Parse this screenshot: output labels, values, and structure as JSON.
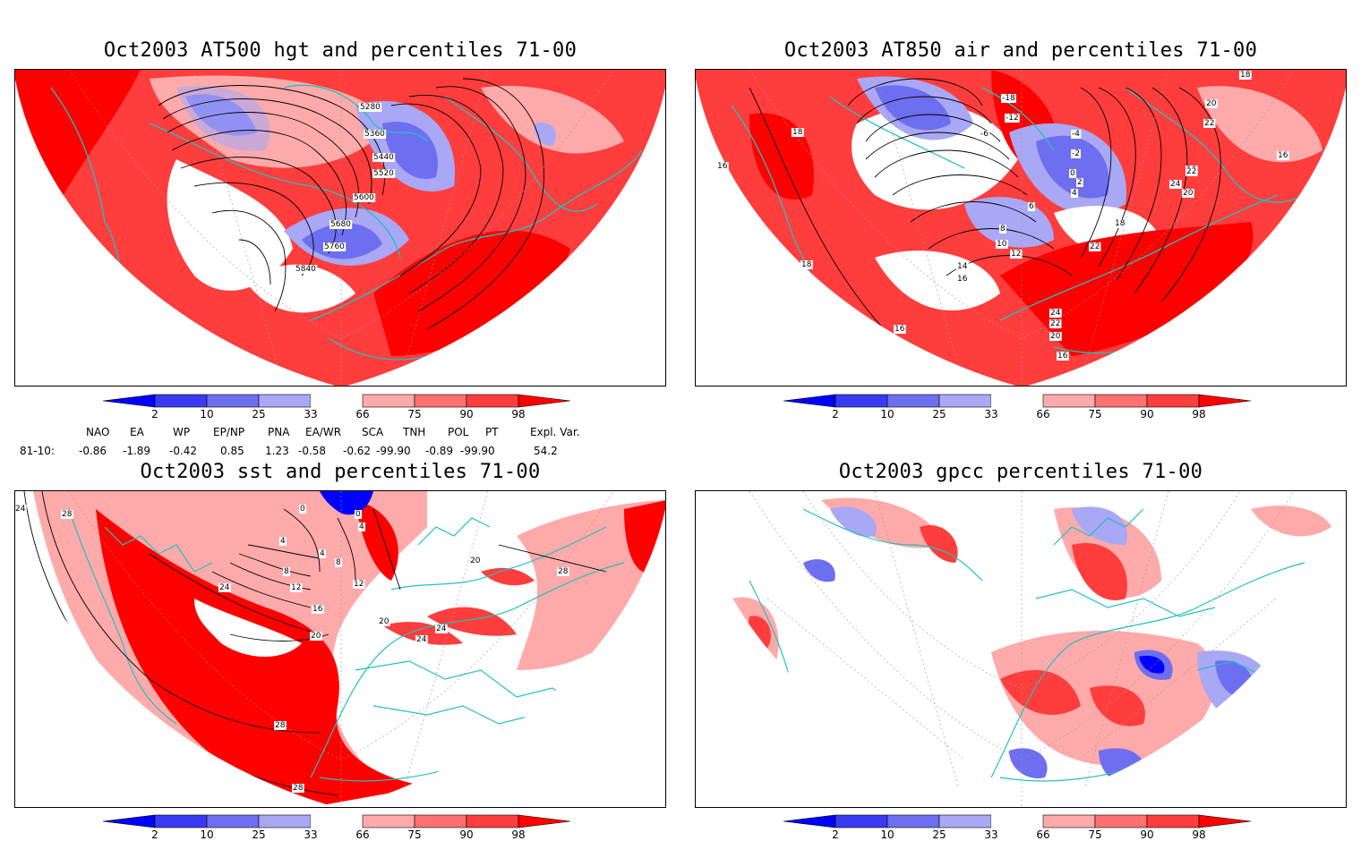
{
  "panels": [
    {
      "id": "p1",
      "title": "Oct2003 AT500 hgt and percentiles 71-00",
      "contour_labels": [
        "5280",
        "5360",
        "5440",
        "5520",
        "5600",
        "5680",
        "5760",
        "5840"
      ]
    },
    {
      "id": "p2",
      "title": "Oct2003 AT850 air and percentiles 71-00",
      "contour_labels": [
        "18",
        "20",
        "22",
        "16",
        "18",
        "16",
        "-4",
        "-2",
        "0",
        "2",
        "4",
        "6",
        "8",
        "10",
        "12",
        "14",
        "16",
        "-18",
        "-12",
        "-6",
        "18",
        "20",
        "22",
        "24",
        "18",
        "16",
        "24",
        "22",
        "20",
        "18",
        "16",
        "22"
      ]
    },
    {
      "id": "p3",
      "title": "Oct2003 sst and percentiles 71-00",
      "contour_labels": [
        "24",
        "28",
        "0",
        "0",
        "4",
        "4",
        "4",
        "8",
        "8",
        "12",
        "12",
        "16",
        "20",
        "20",
        "24",
        "24",
        "28",
        "28",
        "28",
        "20",
        "24"
      ]
    },
    {
      "id": "p4",
      "title": "Oct2003 gpcc percentiles 71-00",
      "contour_labels": []
    }
  ],
  "colorbar": {
    "ticks": [
      "2",
      "10",
      "25",
      "33",
      "66",
      "75",
      "90",
      "98"
    ],
    "colors": {
      "c_lt2": "#0000ff",
      "c_2_10": "#3a3af2",
      "c_10_25": "#6e6ef0",
      "c_25_33": "#a8a8f5",
      "c_33_66": "#ffffff",
      "c_66_75": "#ffaaaa",
      "c_75_90": "#ff7070",
      "c_90_98": "#ff3d3d",
      "c_gt98": "#ff0000"
    }
  },
  "indices": {
    "headers": [
      "NAO",
      "EA",
      "WP",
      "EP/NP",
      "PNA",
      "EA/WR",
      "SCA",
      "TNH",
      "POL",
      "PT",
      "Expl. Var."
    ],
    "row_label": "81-10:",
    "values": [
      "-0.86",
      "-1.89",
      "-0.42",
      "0.85",
      "1.23",
      "-0.58",
      "-0.62",
      "-99.90",
      "-0.89",
      "-99.90",
      "54.2"
    ]
  },
  "map_colors": {
    "coast": "#22c0c0",
    "contour": "#000000",
    "graticule": "#999999"
  }
}
